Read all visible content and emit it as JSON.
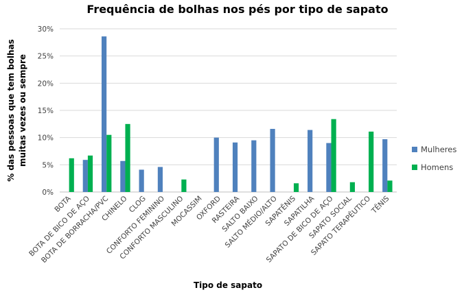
{
  "chart_data": {
    "type": "bar",
    "title": "Frequência de bolhas nos pés por tipo de sapato",
    "xlabel": "Tipo de sapato",
    "ylabel_lines": [
      "% das pessoas que tem bolhas",
      "muitas vezes ou sempre"
    ],
    "ylim": [
      0,
      30
    ],
    "yticks": [
      "0%",
      "5%",
      "10%",
      "15%",
      "20%",
      "25%",
      "30%"
    ],
    "ytick_values": [
      0,
      5,
      10,
      15,
      20,
      25,
      30
    ],
    "grid": true,
    "legend_position": "right",
    "categories": [
      "BOTA",
      "BOTA DE BICO DE AÇO",
      "BOTA DE BORRACHA/PVC",
      "CHINELO",
      "CLOG",
      "CONFORTO FEMININO",
      "CONFORTO MASCULINO",
      "MOCASSIM",
      "OXFORD",
      "RASTEIRA",
      "SALTO BAIXO",
      "SALTO MÉDIO/ALTO",
      "SAPATÊNIS",
      "SAPATILHA",
      "SAPATO DE BICO DE AÇO",
      "SAPATO SOCIAL",
      "SAPATO TERAPÊUTICO",
      "TÊNIS"
    ],
    "series": [
      {
        "name": "Mulheres",
        "color": "#4F81BD",
        "values": [
          null,
          5.9,
          28.6,
          5.7,
          4.1,
          4.6,
          null,
          null,
          10.0,
          9.1,
          9.5,
          11.6,
          null,
          11.4,
          9.0,
          null,
          null,
          9.7
        ]
      },
      {
        "name": "Homens",
        "color": "#00B050",
        "values": [
          6.2,
          6.7,
          10.5,
          12.5,
          null,
          null,
          2.3,
          null,
          null,
          null,
          null,
          null,
          1.6,
          null,
          13.4,
          1.8,
          11.1,
          2.1
        ]
      }
    ]
  }
}
